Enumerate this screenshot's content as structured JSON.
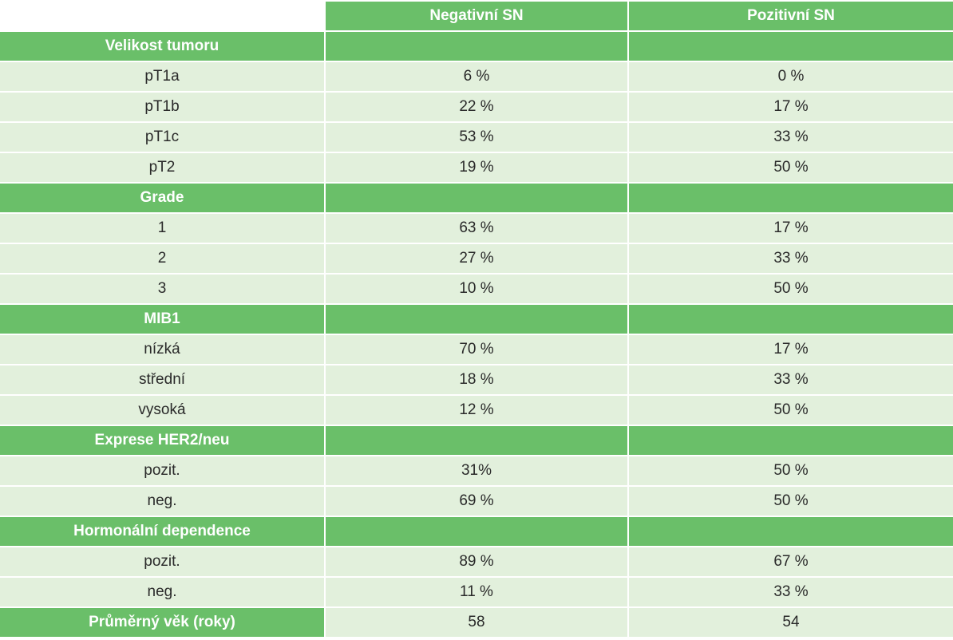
{
  "columns": {
    "col1": "",
    "col2": "Negativní SN",
    "col3": "Pozitivní SN"
  },
  "sections": [
    {
      "title": "Velikost tumoru",
      "rows": [
        {
          "label": "pT1a",
          "neg": "6 %",
          "pos": "0 %"
        },
        {
          "label": "pT1b",
          "neg": "22 %",
          "pos": "17 %"
        },
        {
          "label": "pT1c",
          "neg": "53 %",
          "pos": "33 %"
        },
        {
          "label": "pT2",
          "neg": "19 %",
          "pos": "50 %"
        }
      ]
    },
    {
      "title": "Grade",
      "rows": [
        {
          "label": "1",
          "neg": "63 %",
          "pos": "17 %"
        },
        {
          "label": "2",
          "neg": "27 %",
          "pos": "33 %"
        },
        {
          "label": "3",
          "neg": "10 %",
          "pos": "50 %"
        }
      ]
    },
    {
      "title": "MIB1",
      "rows": [
        {
          "label": "nízká",
          "neg": "70 %",
          "pos": "17 %"
        },
        {
          "label": "střední",
          "neg": "18 %",
          "pos": "33 %"
        },
        {
          "label": "vysoká",
          "neg": "12 %",
          "pos": "50 %"
        }
      ]
    },
    {
      "title": "Exprese HER2/neu",
      "rows": [
        {
          "label": "pozit.",
          "neg": "31%",
          "pos": "50 %"
        },
        {
          "label": "neg.",
          "neg": "69 %",
          "pos": "50 %"
        }
      ]
    },
    {
      "title": "Hormonální dependence",
      "rows": [
        {
          "label": "pozit.",
          "neg": "89 %",
          "pos": "67 %"
        },
        {
          "label": "neg.",
          "neg": "11 %",
          "pos": "33 %"
        }
      ]
    }
  ],
  "footer": {
    "label": "Průměrný věk (roky)",
    "neg": "58",
    "pos": "54"
  },
  "colors": {
    "header_green": "#6abf69",
    "row_light_green": "#e2f0dc"
  }
}
